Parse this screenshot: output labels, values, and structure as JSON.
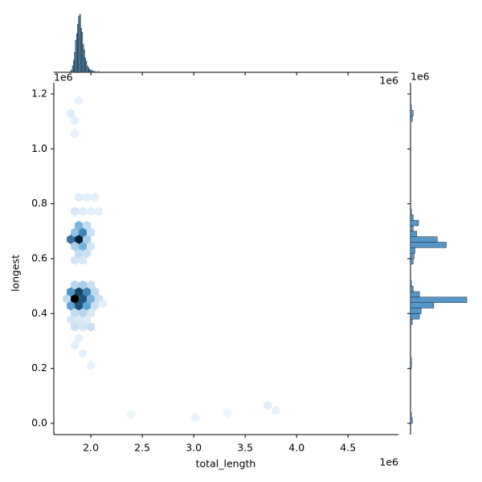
{
  "chart_data": {
    "type": "jointhex",
    "x_label": "total_length",
    "y_label": "longest",
    "x_offset": "1e6",
    "y_offset": "1e6",
    "xlim": [
      1640000,
      4990000
    ],
    "ylim": [
      -41000,
      1241000
    ],
    "xticks": [
      {
        "value": 2000000,
        "label": "2.0"
      },
      {
        "value": 2500000,
        "label": "2.5"
      },
      {
        "value": 3000000,
        "label": "3.0"
      },
      {
        "value": 3500000,
        "label": "3.5"
      },
      {
        "value": 4000000,
        "label": "4.0"
      },
      {
        "value": 4500000,
        "label": "4.5"
      }
    ],
    "yticks": [
      {
        "value": 0,
        "label": "0.0"
      },
      {
        "value": 200000,
        "label": "0.2"
      },
      {
        "value": 400000,
        "label": "0.4"
      },
      {
        "value": 600000,
        "label": "0.6"
      },
      {
        "value": 800000,
        "label": "0.8"
      },
      {
        "value": 1000000,
        "label": "1.0"
      },
      {
        "value": 1200000,
        "label": "1.2"
      }
    ],
    "cmap": [
      "#f2f7fd",
      "#4f9bd2",
      "#0b2a48",
      "#000000"
    ],
    "hexbin": {
      "x": [
        1766000,
        1844000,
        1922000,
        2000000,
        2078000,
        1805000,
        1883000,
        1961000,
        2039000,
        1805000,
        1883000,
        1961000,
        2039000,
        1844000,
        1922000,
        2000000,
        1844000,
        1922000,
        2000000,
        1805000,
        1883000,
        1961000,
        1844000,
        1922000,
        2000000,
        1805000,
        1883000,
        1961000,
        1844000,
        1922000,
        2000000,
        1844000,
        1922000,
        2000000,
        1883000,
        1961000,
        1883000,
        1961000,
        1844000,
        1922000,
        1844000,
        1922000,
        2000000,
        2078000,
        1883000,
        1961000,
        2039000,
        1805000,
        1844000,
        1844000,
        1883000,
        1844000,
        1922000,
        2000000,
        1883000,
        3016000,
        3719000,
        3797000,
        3328000,
        2391000,
        2117000
      ],
      "y": [
        453600,
        453600,
        453600,
        453600,
        453600,
        479100,
        479100,
        479100,
        479100,
        428200,
        428200,
        428200,
        428200,
        504500,
        504500,
        504500,
        402700,
        402700,
        402700,
        377500,
        377500,
        377500,
        351800,
        351800,
        351800,
        670200,
        670200,
        670200,
        695600,
        695600,
        695600,
        644700,
        644700,
        644700,
        721100,
        721100,
        619300,
        619300,
        594100,
        594100,
        772600,
        772600,
        772600,
        772600,
        823500,
        823500,
        823500,
        1129700,
        1103300,
        1055800,
        1175900,
        283900,
        254600,
        210700,
        310200,
        20500,
        64400,
        46800,
        38000,
        32200,
        436000
      ],
      "counts": [
        10,
        100,
        55,
        25,
        8,
        35,
        60,
        40,
        10,
        30,
        55,
        30,
        8,
        12,
        15,
        8,
        10,
        12,
        6,
        6,
        5,
        4,
        8,
        6,
        8,
        45,
        75,
        15,
        20,
        40,
        8,
        15,
        25,
        6,
        25,
        10,
        10,
        8,
        6,
        5,
        5,
        4,
        3,
        3,
        4,
        3,
        3,
        4,
        3,
        2,
        2,
        3,
        3,
        2,
        3,
        2,
        3,
        2,
        1,
        1,
        3
      ]
    },
    "hist_color": "#5497c8",
    "top_hist": {
      "bins": [
        1800000,
        1810000,
        1820000,
        1830000,
        1840000,
        1850000,
        1860000,
        1870000,
        1880000,
        1890000,
        1900000,
        1910000,
        1920000,
        1930000,
        1940000,
        1950000,
        1960000,
        1970000,
        1980000,
        1990000,
        2000000,
        2010000,
        2020000,
        2030000,
        2040000,
        2050000,
        2060000,
        2070000,
        2080000
      ],
      "counts": [
        1,
        3,
        8,
        15,
        25,
        40,
        48,
        60,
        70,
        72,
        55,
        50,
        35,
        28,
        18,
        14,
        8,
        6,
        4,
        3,
        2,
        2,
        1,
        1,
        1,
        0,
        0,
        1
      ],
      "ylim": [
        0,
        90
      ]
    },
    "right_hist": {
      "bins": [
        0,
        20000,
        40000,
        60000,
        80000,
        100000,
        120000,
        140000,
        160000,
        180000,
        200000,
        220000,
        240000,
        260000,
        280000,
        300000,
        320000,
        340000,
        360000,
        380000,
        400000,
        420000,
        440000,
        460000,
        480000,
        500000,
        520000,
        540000,
        560000,
        580000,
        600000,
        620000,
        640000,
        660000,
        680000,
        700000,
        720000,
        740000,
        760000,
        780000,
        800000,
        820000,
        840000,
        860000,
        880000,
        900000,
        920000,
        940000,
        960000,
        980000,
        1000000,
        1020000,
        1040000,
        1060000,
        1080000,
        1100000,
        1120000,
        1140000,
        1160000
      ],
      "counts": [
        2,
        1,
        0,
        0,
        0,
        0,
        0,
        0,
        0,
        0,
        1,
        1,
        0,
        0,
        0,
        0,
        0,
        0,
        2,
        10,
        12,
        26,
        63,
        10,
        3,
        1,
        0,
        0,
        0,
        3,
        4,
        5,
        40,
        30,
        7,
        3,
        9,
        3,
        1,
        0,
        0,
        0,
        0,
        0,
        0,
        0,
        0,
        0,
        0,
        0,
        0,
        0,
        0,
        0,
        0,
        2,
        3,
        1
      ],
      "xlim": [
        0,
        80
      ]
    }
  }
}
